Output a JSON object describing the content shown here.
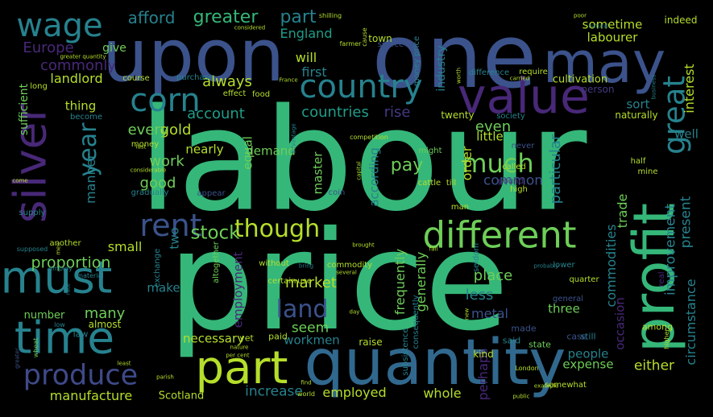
{
  "words": [
    {
      "text": "labour",
      "color": "#35b779"
    },
    {
      "text": "price",
      "color": "#35b779"
    },
    {
      "text": "one",
      "color": "#3b528b"
    },
    {
      "text": "upon",
      "color": "#3b528b"
    },
    {
      "text": "quantity",
      "color": "#31688e"
    },
    {
      "text": "may",
      "color": "#3b528b"
    },
    {
      "text": "profit",
      "color": "#35b779"
    },
    {
      "text": "value",
      "color": "#482878"
    },
    {
      "text": "part",
      "color": "#b5de2b"
    },
    {
      "text": "must",
      "color": "#26828e"
    },
    {
      "text": "silver",
      "color": "#482878"
    },
    {
      "text": "time",
      "color": "#26828e"
    },
    {
      "text": "different",
      "color": "#6ece58"
    },
    {
      "text": "country",
      "color": "#26828e"
    },
    {
      "text": "wage",
      "color": "#26828e"
    },
    {
      "text": "corn",
      "color": "#26828e"
    },
    {
      "text": "great",
      "color": "#26828e"
    },
    {
      "text": "produce",
      "color": "#3e4a89"
    },
    {
      "text": "rent",
      "color": "#3b528b"
    },
    {
      "text": "much",
      "color": "#6ece58"
    },
    {
      "text": "land",
      "color": "#3b528b"
    },
    {
      "text": "though",
      "color": "#b5de2b"
    },
    {
      "text": "year",
      "color": "#26828e"
    },
    {
      "text": "stock",
      "color": "#6ece58"
    },
    {
      "text": "greater",
      "color": "#35b779"
    },
    {
      "text": "part",
      "color": "#26828e"
    },
    {
      "text": "afford",
      "color": "#26828e"
    },
    {
      "text": "England",
      "color": "#1f9e89"
    },
    {
      "text": "will",
      "color": "#b5de2b"
    },
    {
      "text": "first",
      "color": "#26828e"
    },
    {
      "text": "Europe",
      "color": "#482878"
    },
    {
      "text": "commonly",
      "color": "#482878"
    },
    {
      "text": "landlord",
      "color": "#b5de2b"
    },
    {
      "text": "give",
      "color": "#6ece58"
    },
    {
      "text": "always",
      "color": "#b5de2b"
    },
    {
      "text": "account",
      "color": "#1f9e89"
    },
    {
      "text": "countries",
      "color": "#1f9e89"
    },
    {
      "text": "rise",
      "color": "#443983"
    },
    {
      "text": "gold",
      "color": "#b5de2b"
    },
    {
      "text": "every",
      "color": "#6ece58"
    },
    {
      "text": "thing",
      "color": "#b5de2b"
    },
    {
      "text": "sufficient",
      "color": "#6ece58"
    },
    {
      "text": "manner",
      "color": "#26828e"
    },
    {
      "text": "work",
      "color": "#6ece58"
    },
    {
      "text": "nearly",
      "color": "#b5de2b"
    },
    {
      "text": "demand",
      "color": "#6ece58"
    },
    {
      "text": "equal",
      "color": "#6ece58"
    },
    {
      "text": "pay",
      "color": "#6ece58"
    },
    {
      "text": "even",
      "color": "#6ece58"
    },
    {
      "text": "order",
      "color": "#b5de2b"
    },
    {
      "text": "little",
      "color": "#b5de2b"
    },
    {
      "text": "particular",
      "color": "#26828e"
    },
    {
      "text": "good",
      "color": "#6ece58"
    },
    {
      "text": "master",
      "color": "#6ece58"
    },
    {
      "text": "according",
      "color": "#26828e"
    },
    {
      "text": "common",
      "color": "#3b528b"
    },
    {
      "text": "trade",
      "color": "#6ece58"
    },
    {
      "text": "sometime",
      "color": "#b5de2b"
    },
    {
      "text": "labourer",
      "color": "#b5de2b"
    },
    {
      "text": "interest",
      "color": "#b5de2b"
    },
    {
      "text": "industry",
      "color": "#26828e"
    },
    {
      "text": "town",
      "color": "#b5de2b"
    },
    {
      "text": "cultivation",
      "color": "#b5de2b"
    },
    {
      "text": "sort",
      "color": "#26828e"
    },
    {
      "text": "well",
      "color": "#26828e"
    },
    {
      "text": "twenty",
      "color": "#b5de2b"
    },
    {
      "text": "indeed",
      "color": "#b5de2b"
    },
    {
      "text": "person",
      "color": "#443983"
    },
    {
      "text": "naturally",
      "color": "#b5de2b"
    },
    {
      "text": "commodities",
      "color": "#26828e"
    },
    {
      "text": "present",
      "color": "#26828e"
    },
    {
      "text": "improvement",
      "color": "#26828e"
    },
    {
      "text": "circumstance",
      "color": "#26828e"
    },
    {
      "text": "proportion",
      "color": "#6ece58"
    },
    {
      "text": "small",
      "color": "#b5de2b"
    },
    {
      "text": "make",
      "color": "#26828e"
    },
    {
      "text": "two",
      "color": "#26828e"
    },
    {
      "text": "employment",
      "color": "#482878"
    },
    {
      "text": "market",
      "color": "#b5de2b"
    },
    {
      "text": "frequently",
      "color": "#6ece58"
    },
    {
      "text": "generally",
      "color": "#6ece58"
    },
    {
      "text": "less",
      "color": "#26828e"
    },
    {
      "text": "place",
      "color": "#6ece58"
    },
    {
      "text": "metal",
      "color": "#3b528b"
    },
    {
      "text": "three",
      "color": "#6ece58"
    },
    {
      "text": "occasion",
      "color": "#482878"
    },
    {
      "text": "many",
      "color": "#6ece58"
    },
    {
      "text": "seem",
      "color": "#6ece58"
    },
    {
      "text": "necessary",
      "color": "#b5de2b"
    },
    {
      "text": "workmen",
      "color": "#26828e"
    },
    {
      "text": "people",
      "color": "#26828e"
    },
    {
      "text": "expense",
      "color": "#6ece58"
    },
    {
      "text": "either",
      "color": "#b5de2b"
    },
    {
      "text": "manufacture",
      "color": "#b5de2b"
    },
    {
      "text": "Scotland",
      "color": "#b5de2b"
    },
    {
      "text": "increase",
      "color": "#26828e"
    },
    {
      "text": "employed",
      "color": "#b5de2b"
    },
    {
      "text": "whole",
      "color": "#b5de2b"
    },
    {
      "text": "perhaps",
      "color": "#482878"
    },
    {
      "text": "number",
      "color": "#6ece58"
    },
    {
      "text": "law",
      "color": "#26828e"
    },
    {
      "text": "almost",
      "color": "#b5de2b"
    },
    {
      "text": "raise",
      "color": "#b5de2b"
    },
    {
      "text": "yet",
      "color": "#b5de2b"
    },
    {
      "text": "paid",
      "color": "#b5de2b"
    },
    {
      "text": "made",
      "color": "#3b528b"
    },
    {
      "text": "kind",
      "color": "#b5de2b"
    },
    {
      "text": "state",
      "color": "#6ece58"
    },
    {
      "text": "said",
      "color": "#26828e"
    },
    {
      "text": "still",
      "color": "#26828e"
    },
    {
      "text": "among",
      "color": "#b5de2b"
    },
    {
      "text": "case",
      "color": "#3b528b"
    },
    {
      "text": "real",
      "color": "#482878"
    },
    {
      "text": "general",
      "color": "#3b528b"
    },
    {
      "text": "lower",
      "color": "#26828e"
    },
    {
      "text": "quarter",
      "color": "#b5de2b"
    },
    {
      "text": "seldom",
      "color": "#26828e"
    },
    {
      "text": "consequently",
      "color": "#26828e"
    },
    {
      "text": "subsistence",
      "color": "#26828e"
    },
    {
      "text": "commodity",
      "color": "#b5de2b"
    },
    {
      "text": "without",
      "color": "#b5de2b"
    },
    {
      "text": "exchange",
      "color": "#26828e"
    },
    {
      "text": "altogether",
      "color": "#6ece58"
    },
    {
      "text": "supply",
      "color": "#26828e"
    },
    {
      "text": "another",
      "color": "#b5de2b"
    },
    {
      "text": "supposed",
      "color": "#26828e"
    },
    {
      "text": "employ",
      "color": "#26828e"
    },
    {
      "text": "rate",
      "color": "#26828e"
    },
    {
      "text": "material",
      "color": "#26828e"
    },
    {
      "text": "greater",
      "color": "#3b528b"
    },
    {
      "text": "wheat",
      "color": "#6ece58"
    },
    {
      "text": "low",
      "color": "#26828e"
    },
    {
      "text": "cattle",
      "color": "#b5de2b"
    },
    {
      "text": "till",
      "color": "#b5de2b"
    },
    {
      "text": "might",
      "color": "#6ece58"
    },
    {
      "text": "man",
      "color": "#b5de2b"
    },
    {
      "text": "coin",
      "color": "#3b528b"
    },
    {
      "text": "pound",
      "color": "#482878"
    },
    {
      "text": "called",
      "color": "#b5de2b"
    },
    {
      "text": "high",
      "color": "#b5de2b"
    },
    {
      "text": "mine",
      "color": "#b5de2b"
    },
    {
      "text": "half",
      "color": "#b5de2b"
    },
    {
      "text": "never",
      "color": "#3b528b"
    },
    {
      "text": "society",
      "color": "#26828e"
    },
    {
      "text": "money",
      "color": "#b5de2b"
    },
    {
      "text": "last",
      "color": "#b5de2b"
    },
    {
      "text": "money price",
      "color": "#26828e"
    },
    {
      "text": "require",
      "color": "#b5de2b"
    },
    {
      "text": "purchase",
      "color": "#26828e"
    },
    {
      "text": "effect",
      "color": "#b5de2b"
    },
    {
      "text": "food",
      "color": "#b5de2b"
    },
    {
      "text": "course",
      "color": "#b5de2b"
    },
    {
      "text": "become",
      "color": "#26828e"
    },
    {
      "text": "long",
      "color": "#b5de2b"
    },
    {
      "text": "difference",
      "color": "#26828e"
    },
    {
      "text": "scarce",
      "color": "#3b528b"
    },
    {
      "text": "cause",
      "color": "#b5de2b"
    },
    {
      "text": "shilling",
      "color": "#b5de2b"
    },
    {
      "text": "poor",
      "color": "#b5de2b"
    },
    {
      "text": "considered",
      "color": "#b5de2b"
    },
    {
      "text": "greater quantity",
      "color": "#b5de2b"
    },
    {
      "text": "France",
      "color": "#b5de2b"
    },
    {
      "text": "carried",
      "color": "#b5de2b"
    },
    {
      "text": "worth",
      "color": "#b5de2b"
    },
    {
      "text": "business",
      "color": "#26828e"
    },
    {
      "text": "competition",
      "color": "#b5de2b"
    },
    {
      "text": "advantage",
      "color": "#26828e"
    },
    {
      "text": "considerable",
      "color": "#b5de2b"
    },
    {
      "text": "capital",
      "color": "#b5de2b"
    },
    {
      "text": "gradually",
      "color": "#26828e"
    },
    {
      "text": "appear",
      "color": "#3b528b"
    },
    {
      "text": "come",
      "color": "#b5de2b"
    },
    {
      "text": "men",
      "color": "#b5de2b"
    },
    {
      "text": "brought",
      "color": "#b5de2b"
    },
    {
      "text": "fall",
      "color": "#b5de2b"
    },
    {
      "text": "bring",
      "color": "#26828e"
    },
    {
      "text": "several",
      "color": "#b5de2b"
    },
    {
      "text": "certain",
      "color": "#b5de2b"
    },
    {
      "text": "use",
      "color": "#b5de2b"
    },
    {
      "text": "day",
      "color": "#b5de2b"
    },
    {
      "text": "new",
      "color": "#b5de2b"
    },
    {
      "text": "probably",
      "color": "#26828e"
    },
    {
      "text": "parish",
      "color": "#b5de2b"
    },
    {
      "text": "nature",
      "color": "#b5de2b"
    },
    {
      "text": "per cent",
      "color": "#b5de2b"
    },
    {
      "text": "least",
      "color": "#b5de2b"
    },
    {
      "text": "find",
      "color": "#b5de2b"
    },
    {
      "text": "world",
      "color": "#b5de2b"
    },
    {
      "text": "London",
      "color": "#b5de2b"
    },
    {
      "text": "public",
      "color": "#b5de2b"
    },
    {
      "text": "example",
      "color": "#b5de2b"
    },
    {
      "text": "somewhat",
      "color": "#b5de2b"
    },
    {
      "text": "farmer",
      "color": "#b5de2b"
    },
    {
      "text": "natural",
      "color": "#26828e"
    },
    {
      "text": "higher",
      "color": "#b5de2b"
    },
    {
      "text": "nation",
      "color": "#26828e"
    }
  ]
}
